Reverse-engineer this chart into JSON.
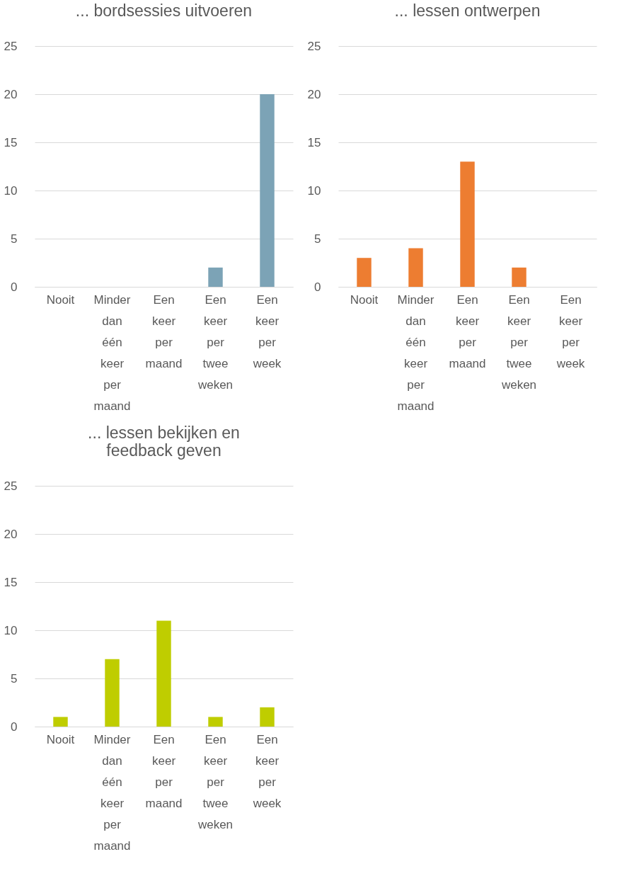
{
  "chart_data": [
    {
      "type": "bar",
      "title": "... bordsessies uitvoeren",
      "categories": [
        "Nooit",
        "Minder dan één keer per maand",
        "Een keer per maand",
        "Een keer per twee weken",
        "Een keer per week"
      ],
      "values": [
        0,
        0,
        0,
        2,
        20
      ],
      "color": "#7ca3b6",
      "ylim": [
        0,
        25
      ],
      "yticks": [
        0,
        5,
        10,
        15,
        20,
        25
      ],
      "grid": "y"
    },
    {
      "type": "bar",
      "title": "... lessen ontwerpen",
      "categories": [
        "Nooit",
        "Minder dan één keer per maand",
        "Een keer per maand",
        "Een keer per twee weken",
        "Een keer per week"
      ],
      "values": [
        3,
        4,
        13,
        2,
        0
      ],
      "color": "#ed7d31",
      "ylim": [
        0,
        25
      ],
      "yticks": [
        0,
        5,
        10,
        15,
        20,
        25
      ],
      "grid": "y"
    },
    {
      "type": "bar",
      "title": "... lessen bekijken en feedback geven",
      "categories": [
        "Nooit",
        "Minder dan één keer per maand",
        "Een keer per maand",
        "Een keer per twee weken",
        "Een keer per week"
      ],
      "values": [
        1,
        7,
        11,
        1,
        2
      ],
      "color": "#bfcd00",
      "ylim": [
        0,
        25
      ],
      "yticks": [
        0,
        5,
        10,
        15,
        20,
        25
      ],
      "grid": "y"
    }
  ]
}
